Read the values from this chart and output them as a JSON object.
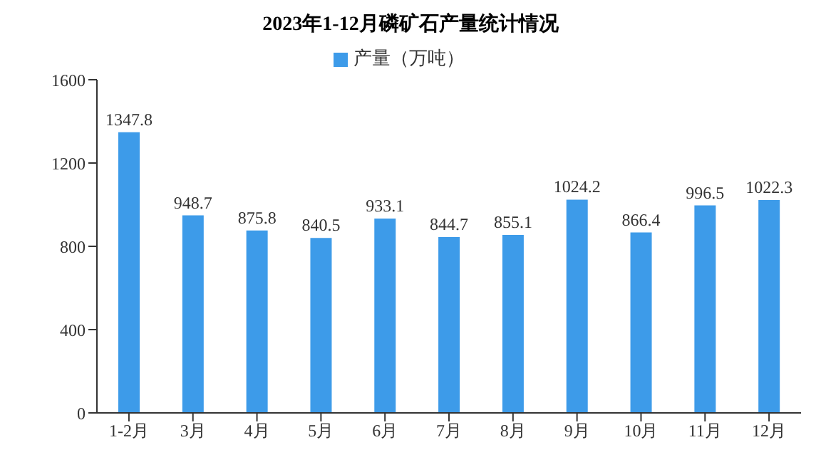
{
  "chart_data": {
    "type": "bar",
    "title": "2023年1-12月磷矿石产量统计情况",
    "categories": [
      "1-2月",
      "3月",
      "4月",
      "5月",
      "6月",
      "7月",
      "8月",
      "9月",
      "10月",
      "11月",
      "12月"
    ],
    "series": [
      {
        "name": "产量（万吨）",
        "color": "#3d9be9",
        "values": [
          1347.8,
          948.7,
          875.8,
          840.5,
          933.1,
          844.7,
          855.1,
          1024.2,
          866.4,
          996.5,
          1022.3
        ]
      }
    ],
    "ylim": [
      0,
      1600
    ],
    "yticks": [
      0,
      400,
      800,
      1200,
      1600
    ],
    "grid": false,
    "legend": "top",
    "data_labels": true
  }
}
